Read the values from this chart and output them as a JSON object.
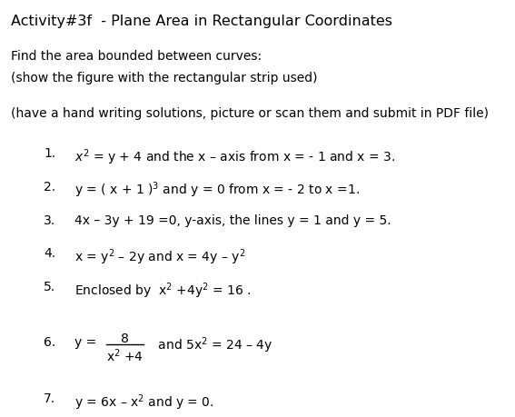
{
  "title": "Activity#3f  - Plane Area in Rectangular Coordinates",
  "intro_line1": "Find the area bounded between curves:",
  "intro_line2": "(show the figure with the rectangular strip used)",
  "intro_line3": "(have a hand writing solutions, picture or scan them and submit in PDF file)",
  "bg_color": "#ffffff",
  "text_color": "#000000",
  "title_fontsize": 11.5,
  "body_fontsize": 10.0,
  "item_fontsize": 10.0
}
